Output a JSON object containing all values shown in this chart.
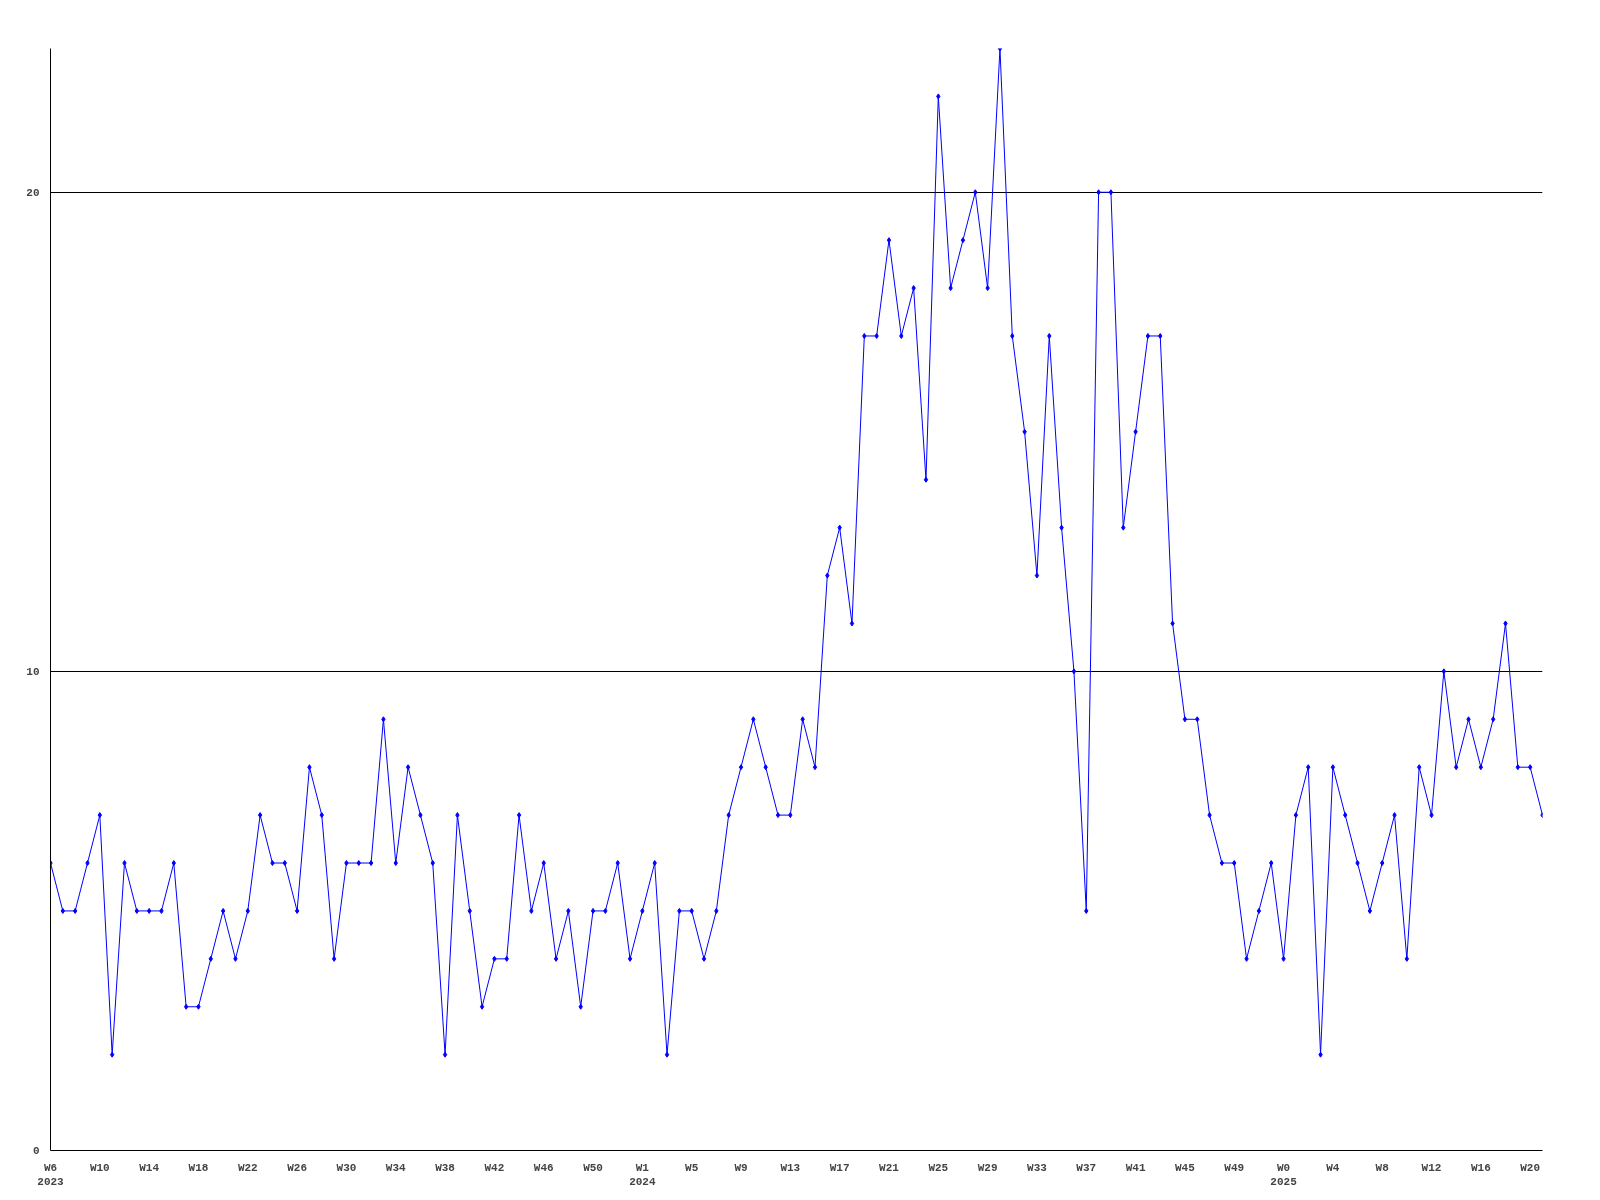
{
  "chart_data": {
    "type": "line",
    "categories": [
      "W6\n2023",
      null,
      null,
      null,
      "W10",
      null,
      null,
      null,
      "W14",
      null,
      null,
      null,
      "W18",
      null,
      null,
      null,
      "W22",
      null,
      null,
      null,
      "W26",
      null,
      null,
      null,
      "W30",
      null,
      null,
      null,
      "W34",
      null,
      null,
      null,
      "W38",
      null,
      null,
      null,
      "W42",
      null,
      null,
      null,
      "W46",
      null,
      null,
      null,
      "W50",
      null,
      null,
      null,
      "W1\n2024",
      null,
      null,
      null,
      "W5",
      null,
      null,
      null,
      "W9",
      null,
      null,
      null,
      "W13",
      null,
      null,
      null,
      "W17",
      null,
      null,
      null,
      "W21",
      null,
      null,
      null,
      "W25",
      null,
      null,
      null,
      "W29",
      null,
      null,
      null,
      "W33",
      null,
      null,
      null,
      "W37",
      null,
      null,
      null,
      "W41",
      null,
      null,
      null,
      "W45",
      null,
      null,
      null,
      "W49",
      null,
      null,
      null,
      "W0\n2025",
      null,
      null,
      null,
      "W4",
      null,
      null,
      null,
      "W8",
      null,
      null,
      null,
      "W12",
      null,
      null,
      null,
      "W16",
      null,
      null,
      null,
      "W20",
      null
    ],
    "series": [
      {
        "color": "#0000ff",
        "values": [
          6,
          5,
          5,
          6,
          7,
          2,
          6,
          5,
          5,
          5,
          6,
          3,
          3,
          4,
          5,
          4,
          5,
          7,
          6,
          6,
          5,
          8,
          7,
          4,
          6,
          6,
          6,
          9,
          6,
          8,
          7,
          6,
          2,
          7,
          5,
          3,
          4,
          4,
          7,
          5,
          6,
          4,
          5,
          3,
          5,
          5,
          6,
          4,
          5,
          6,
          2,
          5,
          5,
          4,
          5,
          7,
          8,
          9,
          8,
          7,
          7,
          9,
          8,
          12,
          13,
          11,
          17,
          17,
          19,
          17,
          18,
          14,
          22,
          18,
          19,
          20,
          18,
          23,
          17,
          15,
          12,
          17,
          13,
          10,
          5,
          20,
          20,
          13,
          15,
          17,
          17,
          11,
          9,
          9,
          7,
          6,
          6,
          4,
          5,
          6,
          4,
          7,
          8,
          2,
          8,
          7,
          6,
          5,
          6,
          7,
          4,
          8,
          7,
          10,
          8,
          9,
          8,
          9,
          11,
          8,
          8,
          7
        ]
      }
    ],
    "ylim": [
      0,
      23
    ],
    "yticks": [
      0,
      10,
      20
    ],
    "grid": "y",
    "marker": "diamond",
    "line_style": "solid"
  }
}
